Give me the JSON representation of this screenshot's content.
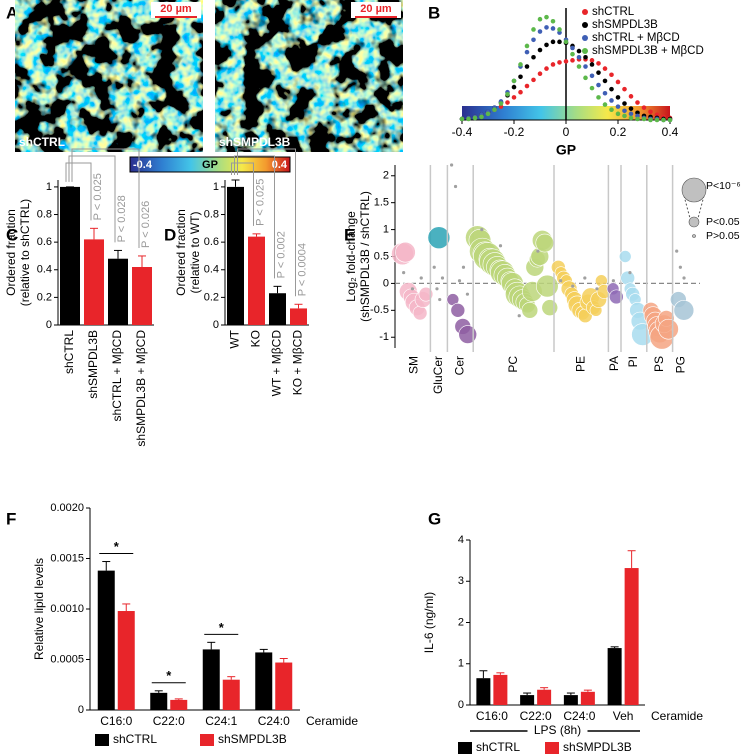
{
  "chart_data": [
    {
      "type": "image",
      "panel": "A",
      "images": [
        {
          "label": "shCTRL",
          "scale": "20 µm"
        },
        {
          "label": "shSMPDL3B",
          "scale": "20 µm"
        }
      ],
      "colorbar": {
        "clim": [
          -0.4,
          0.4
        ],
        "ticks": [
          -0.4,
          0.4
        ],
        "label": "GP"
      }
    },
    {
      "type": "line",
      "panel": "B",
      "xlabel": "GP",
      "x": [
        -0.4,
        -0.375,
        -0.35,
        -0.325,
        -0.3,
        -0.275,
        -0.25,
        -0.225,
        -0.2,
        -0.175,
        -0.15,
        -0.125,
        -0.1,
        -0.075,
        -0.05,
        -0.025,
        0,
        0.025,
        0.05,
        0.075,
        0.1,
        0.125,
        0.15,
        0.175,
        0.2,
        0.225,
        0.25,
        0.275,
        0.3,
        0.325,
        0.35,
        0.375,
        0.4
      ],
      "xlim": [
        -0.4,
        0.4
      ],
      "xticks": [
        -0.4,
        -0.2,
        0,
        0.2,
        0.4
      ],
      "ylim": [
        0,
        105
      ],
      "series": [
        {
          "name": "shCTRL",
          "color": "#e8252a",
          "values": [
            1,
            2,
            3,
            5,
            7,
            10,
            13,
            17,
            22,
            27,
            33,
            39,
            45,
            50,
            54,
            56,
            57,
            58,
            59,
            59,
            58,
            55,
            50,
            44,
            37,
            30,
            23,
            17,
            12,
            8,
            5,
            3,
            2
          ]
        },
        {
          "name": "shSMPDL3B",
          "color": "#000000",
          "values": [
            1,
            2,
            3,
            5,
            8,
            12,
            17,
            24,
            32,
            42,
            52,
            61,
            68,
            73,
            76,
            76,
            75,
            72,
            67,
            61,
            54,
            46,
            38,
            30,
            22,
            16,
            11,
            7,
            4,
            3,
            2,
            1,
            1
          ]
        },
        {
          "name": "shCTRL + MβCD",
          "color": "#3f5fb5",
          "values": [
            1,
            2,
            3,
            5,
            8,
            12,
            18,
            27,
            38,
            52,
            66,
            78,
            86,
            90,
            89,
            85,
            78,
            70,
            61,
            52,
            43,
            34,
            26,
            19,
            13,
            9,
            6,
            4,
            2,
            1,
            1,
            0,
            0
          ]
        },
        {
          "name": "shSMPDL3B + MβCD",
          "color": "#5cb84a",
          "values": [
            1,
            1,
            2,
            3,
            6,
            10,
            16,
            25,
            38,
            54,
            72,
            88,
            98,
            100,
            96,
            88,
            76,
            64,
            52,
            41,
            31,
            22,
            15,
            10,
            6,
            4,
            2,
            1,
            1,
            0,
            0,
            0,
            0
          ]
        }
      ]
    },
    {
      "type": "bar",
      "panel": "C",
      "ylabel": [
        "Ordered fraction",
        "(relative to shCTRL)"
      ],
      "categories": [
        "shCTRL",
        "shSMPDL3B",
        "shCTRL + MβCD",
        "shSMPDL3B + MβCD"
      ],
      "values": [
        1,
        0.62,
        0.48,
        0.42
      ],
      "errors": [
        0,
        0.08,
        0.06,
        0.08
      ],
      "colors": [
        "#000000",
        "#e8252a",
        "#000000",
        "#e8252a"
      ],
      "ylim": [
        0,
        1.05
      ],
      "yticks": [
        0,
        0.2,
        0.4,
        0.6,
        0.8,
        1
      ],
      "annotations": [
        "P < 0.025",
        "P < 0.028",
        "P < 0.026"
      ]
    },
    {
      "type": "bar",
      "panel": "D",
      "ylabel": [
        "Ordered fraction",
        "(relative to WT)"
      ],
      "categories": [
        "WT",
        "KO",
        "WT + MβCD",
        "KO + MβCD"
      ],
      "values": [
        1,
        0.64,
        0.23,
        0.12
      ],
      "errors": [
        0.05,
        0.02,
        0.05,
        0.03
      ],
      "colors": [
        "#000000",
        "#e8252a",
        "#000000",
        "#e8252a"
      ],
      "ylim": [
        0,
        1.05
      ],
      "yticks": [
        0,
        0.2,
        0.4,
        0.6,
        0.8,
        1
      ],
      "annotations": [
        "P < 0.025",
        "P < 0.002",
        "P < 0.0004"
      ]
    },
    {
      "type": "bubble",
      "panel": "E",
      "ylabel": [
        "Log₂ fold-change",
        "(shSMPDL3B / shCTRL)"
      ],
      "ylim": [
        -1.2,
        2.2
      ],
      "yticks": [
        -1,
        -0.5,
        0,
        0.5,
        1,
        1.5,
        2
      ],
      "ns_color": "#a0a0a0",
      "categories": [
        "SM",
        "GluCer",
        "Cer",
        "PC",
        "PE",
        "PA",
        "PI",
        "PS",
        "PG"
      ],
      "series": [
        {
          "color": "#f4b6c8",
          "values": [
            0.55,
            0.58,
            -0.15,
            -0.25,
            -0.35,
            -0.45,
            -0.55,
            -0.3,
            -0.2
          ],
          "sizes": [
            11,
            10,
            9,
            8,
            9,
            8,
            7,
            8,
            7
          ],
          "ns_values": [
            0.2,
            -0.1,
            0.1
          ]
        },
        {
          "color": "#2aa3b5",
          "values": [
            0.85
          ],
          "sizes": [
            11
          ],
          "ns_values": [
            0.3,
            -0.1,
            -0.3,
            0.1
          ]
        },
        {
          "color": "#8e5ea2",
          "values": [
            -0.3,
            -0.5,
            -0.8,
            -0.95
          ],
          "sizes": [
            6,
            7,
            8,
            9
          ],
          "ns_values": [
            2.2,
            1.8,
            0.05,
            0.3,
            -0.2
          ]
        },
        {
          "color": "#bcd67a",
          "values": [
            0.85,
            0.8,
            0.6,
            0.55,
            0.5,
            0.45,
            0.4,
            0.35,
            0.3,
            0.25,
            0.2,
            0.15,
            0.1,
            0.05,
            0,
            -0.1,
            -0.2,
            -0.25,
            -0.3,
            -0.35,
            -0.4,
            -0.5,
            -0.15,
            0.3,
            0.45,
            0.5,
            0.8,
            0.75,
            -0.05,
            -0.45
          ],
          "sizes": [
            12,
            11,
            13,
            12,
            14,
            11,
            13,
            12,
            11,
            10,
            12,
            11,
            10,
            9,
            11,
            10,
            12,
            11,
            10,
            9,
            8,
            8,
            10,
            9,
            8,
            9,
            10,
            9,
            11,
            8
          ],
          "ns_values": [
            1.0,
            0.7,
            -0.6,
            0.6
          ]
        },
        {
          "color": "#f5cf5a",
          "values": [
            0.3,
            0.2,
            0.1,
            0.05,
            -0.1,
            -0.2,
            -0.3,
            -0.4,
            -0.5,
            -0.55,
            -0.6,
            -0.35,
            -0.25,
            -0.45,
            -0.5,
            -0.3,
            0.05,
            -0.15
          ],
          "sizes": [
            7,
            6,
            7,
            6,
            8,
            7,
            8,
            9,
            8,
            7,
            7,
            8,
            9,
            7,
            6,
            8,
            6,
            7
          ],
          "ns_values": [
            0.05,
            -0.05,
            0.1,
            -0.1
          ]
        },
        {
          "color": "#8e6ab5",
          "values": [
            -0.1,
            -0.25
          ],
          "sizes": [
            6,
            7
          ],
          "ns_values": [
            0.05
          ]
        },
        {
          "color": "#a8dcef",
          "values": [
            0.5,
            0.1,
            -0.1,
            -0.2,
            -0.3,
            -0.5,
            -0.7,
            -0.95
          ],
          "sizes": [
            6,
            7,
            6,
            7,
            6,
            8,
            9,
            11
          ],
          "ns_values": [
            0.2
          ]
        },
        {
          "color": "#f4a582",
          "values": [
            -0.5,
            -0.6,
            -0.7,
            -0.8,
            -0.9,
            -1.0,
            -0.75,
            -0.65,
            -0.85
          ],
          "sizes": [
            8,
            9,
            9,
            10,
            11,
            12,
            9,
            8,
            10
          ],
          "ns_values": []
        },
        {
          "color": "#a6c4d6",
          "values": [
            -0.3,
            -0.5
          ],
          "sizes": [
            8,
            10
          ],
          "ns_values": [
            0.6,
            0.3,
            0.1
          ]
        }
      ],
      "legend": [
        {
          "label": "P<10⁻⁶",
          "size": 12
        },
        {
          "label": "P<0.05",
          "size": 5
        },
        {
          "label": "P>0.05",
          "size": 1.5
        }
      ]
    },
    {
      "type": "grouped-bar",
      "panel": "F",
      "ylabel": "Relative lipid levels",
      "xlabel": "Ceramide",
      "categories": [
        "C16:0",
        "C22:0",
        "C24:1",
        "C24:0"
      ],
      "ylim": [
        0,
        0.002
      ],
      "yticks": [
        0,
        0.0005,
        {
          "value": 0.001,
          "label": "0.0010"
        },
        0.0015,
        {
          "value": 0.002,
          "label": "0.0020"
        }
      ],
      "series": [
        {
          "name": "shCTRL",
          "color": "#000000",
          "values": [
            0.00138,
            0.00017,
            0.0006,
            0.00057
          ],
          "errors": [
            9e-05,
            2e-05,
            7e-05,
            3e-05
          ]
        },
        {
          "name": "shSMPDL3B",
          "color": "#e8252a",
          "values": [
            0.00098,
            0.0001,
            0.0003,
            0.00047
          ],
          "errors": [
            7e-05,
            1e-05,
            3e-05,
            4e-05
          ]
        }
      ],
      "significance": [
        "*",
        "*",
        "*",
        null
      ]
    },
    {
      "type": "grouped-bar",
      "panel": "G",
      "ylabel": "IL-6 (ng/ml)",
      "xlabel": "Ceramide",
      "bracket_label": "LPS (8h)",
      "categories": [
        "C16:0",
        "C22:0",
        "C24:0",
        "Veh"
      ],
      "ylim": [
        0,
        4
      ],
      "yticks": [
        0,
        1,
        2,
        3,
        4
      ],
      "series": [
        {
          "name": "shCTRL",
          "color": "#000000",
          "values": [
            0.65,
            0.24,
            0.24,
            1.38
          ],
          "errors": [
            0.18,
            0.05,
            0.05,
            0.03
          ]
        },
        {
          "name": "shSMPDL3B",
          "color": "#e8252a",
          "values": [
            0.73,
            0.37,
            0.32,
            3.32
          ],
          "errors": [
            0.05,
            0.05,
            0.04,
            0.42
          ]
        }
      ]
    }
  ]
}
